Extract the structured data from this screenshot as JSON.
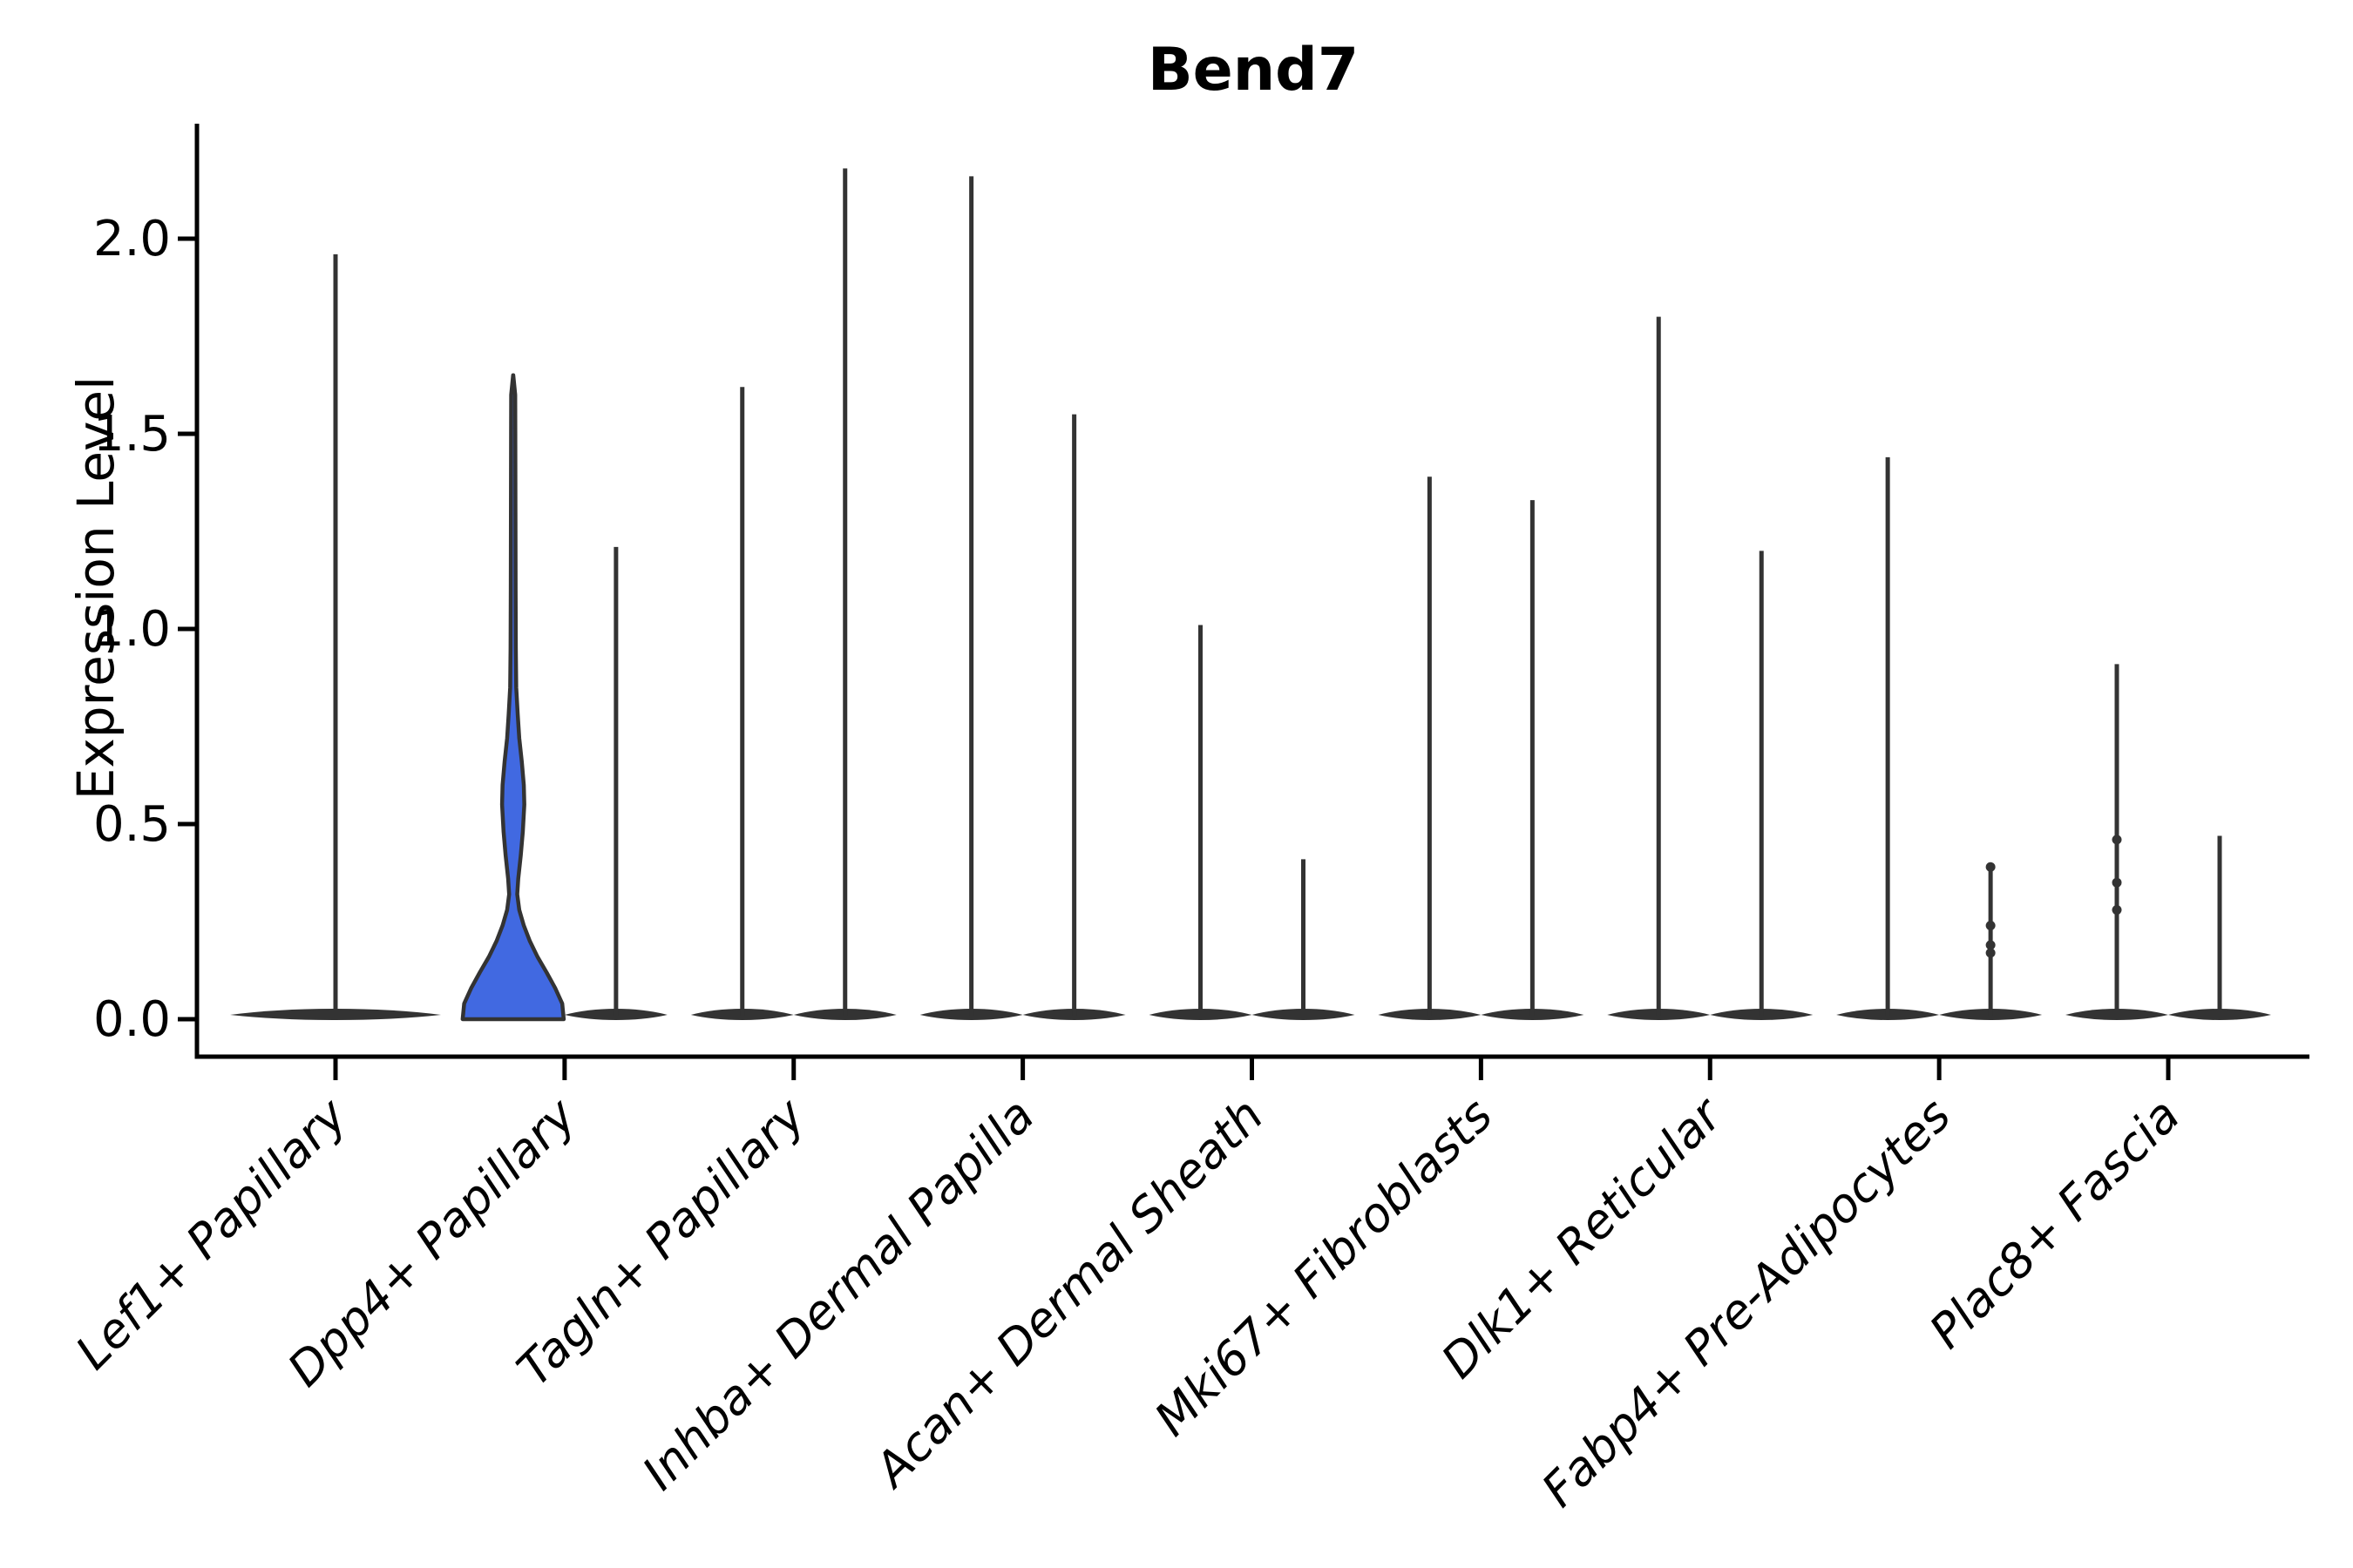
{
  "chart_data": {
    "type": "violin",
    "title": "Bend7",
    "ylabel": "Expression Level",
    "xlabel": "",
    "grid": false,
    "legend": "none",
    "background_color": "#ffffff",
    "ylim": [
      -0.1,
      2.3
    ],
    "yticks": [
      "0.0",
      "0.5",
      "1.0",
      "1.5",
      "2.0"
    ],
    "ytick_values": [
      0.0,
      0.5,
      1.0,
      1.5,
      2.0
    ],
    "categories": [
      "Lef1+ Papillary",
      "Dpp4+ Papillary",
      "Tagln+ Papillary",
      "Inhba+ Dermal Papilla",
      "Acan+ Dermal Sheath",
      "Mki67+ Fibroblasts",
      "Dlk1+ Reticular",
      "Fabp4+ Pre-Adipocytes",
      "Plac8+ Fascia"
    ],
    "colors": {
      "highlight_fill": "#4169e1",
      "edge": "#333333",
      "axis": "#000000",
      "background": "#ffffff"
    },
    "violins": [
      {
        "category_index": 0,
        "category": "Lef1+ Papillary",
        "slot": "center",
        "max": 1.96,
        "median": 0.0,
        "filled": false,
        "points": []
      },
      {
        "category_index": 1,
        "category": "Dpp4+ Papillary",
        "slot": "left",
        "max": 1.65,
        "median": 0.0,
        "filled": true,
        "points": [],
        "profile": [
          [
            0.0,
            1.0
          ],
          [
            0.04,
            0.97
          ],
          [
            0.08,
            0.83
          ],
          [
            0.12,
            0.66
          ],
          [
            0.16,
            0.48
          ],
          [
            0.2,
            0.33
          ],
          [
            0.24,
            0.21
          ],
          [
            0.28,
            0.12
          ],
          [
            0.32,
            0.08
          ],
          [
            0.36,
            0.1
          ],
          [
            0.42,
            0.15
          ],
          [
            0.48,
            0.19
          ],
          [
            0.55,
            0.22
          ],
          [
            0.6,
            0.21
          ],
          [
            0.66,
            0.17
          ],
          [
            0.72,
            0.12
          ],
          [
            0.78,
            0.09
          ],
          [
            0.85,
            0.06
          ],
          [
            0.95,
            0.052
          ],
          [
            1.1,
            0.048
          ],
          [
            1.3,
            0.045
          ],
          [
            1.5,
            0.042
          ],
          [
            1.6,
            0.04
          ],
          [
            1.65,
            0.0
          ]
        ]
      },
      {
        "category_index": 1,
        "category": "Dpp4+ Papillary",
        "slot": "right",
        "max": 1.21,
        "median": 0.0,
        "filled": false,
        "points": []
      },
      {
        "category_index": 2,
        "category": "Tagln+ Papillary",
        "slot": "left",
        "max": 1.62,
        "median": 0.0,
        "filled": false,
        "points": []
      },
      {
        "category_index": 2,
        "category": "Tagln+ Papillary",
        "slot": "right",
        "max": 2.18,
        "median": 0.0,
        "filled": false,
        "points": []
      },
      {
        "category_index": 3,
        "category": "Inhba+ Dermal Papilla",
        "slot": "left",
        "max": 2.16,
        "median": 0.0,
        "filled": false,
        "points": []
      },
      {
        "category_index": 3,
        "category": "Inhba+ Dermal Papilla",
        "slot": "right",
        "max": 1.55,
        "median": 0.0,
        "filled": false,
        "points": []
      },
      {
        "category_index": 4,
        "category": "Acan+ Dermal Sheath",
        "slot": "left",
        "max": 1.01,
        "median": 0.0,
        "filled": false,
        "points": []
      },
      {
        "category_index": 4,
        "category": "Acan+ Dermal Sheath",
        "slot": "right",
        "max": 0.41,
        "median": 0.0,
        "filled": false,
        "points": []
      },
      {
        "category_index": 5,
        "category": "Mki67+ Fibroblasts",
        "slot": "left",
        "max": 1.39,
        "median": 0.0,
        "filled": false,
        "points": []
      },
      {
        "category_index": 5,
        "category": "Mki67+ Fibroblasts",
        "slot": "right",
        "max": 1.33,
        "median": 0.0,
        "filled": false,
        "points": []
      },
      {
        "category_index": 6,
        "category": "Dlk1+ Reticular",
        "slot": "left",
        "max": 1.8,
        "median": 0.0,
        "filled": false,
        "points": []
      },
      {
        "category_index": 6,
        "category": "Dlk1+ Reticular",
        "slot": "right",
        "max": 1.2,
        "median": 0.0,
        "filled": false,
        "points": []
      },
      {
        "category_index": 7,
        "category": "Fabp4+ Pre-Adipocytes",
        "slot": "left",
        "max": 1.44,
        "median": 0.0,
        "filled": false,
        "points": []
      },
      {
        "category_index": 7,
        "category": "Fabp4+ Pre-Adipocytes",
        "slot": "right",
        "max": 0.39,
        "median": 0.0,
        "filled": false,
        "points": [
          0.39,
          0.24,
          0.19,
          0.17
        ]
      },
      {
        "category_index": 8,
        "category": "Plac8+ Fascia",
        "slot": "left",
        "max": 0.91,
        "median": 0.0,
        "filled": false,
        "points": [
          0.46,
          0.35,
          0.28
        ]
      },
      {
        "category_index": 8,
        "category": "Plac8+ Fascia",
        "slot": "right",
        "max": 0.47,
        "median": 0.0,
        "filled": false,
        "points": []
      }
    ]
  }
}
